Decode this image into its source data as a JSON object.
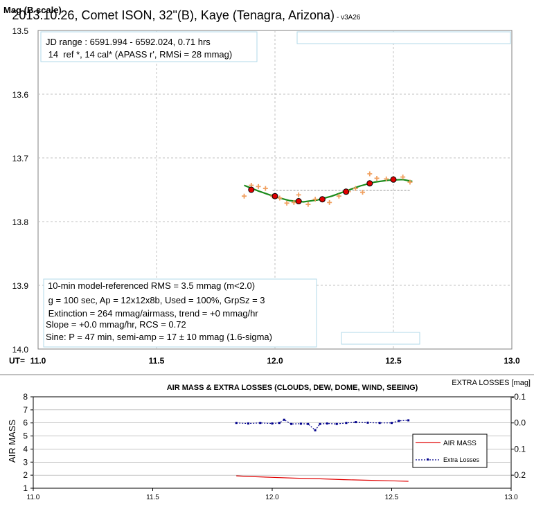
{
  "top_chart": {
    "title": "2013.10.26, Comet ISON, 32\"(B), Kaye (Tenagra, Arizona)",
    "version": "- v3A26",
    "ylabel": "Mag (B scale)",
    "x_prefix": "UT=",
    "info_top": [
      "JD range : 6591.994 - 6592.024, 0.71 hrs",
      " 14  ref *, 14 cal* (APASS r', RMSi = 28 mmag)"
    ],
    "info_bottom": [
      "10-min model-referenced RMS = 3.5 mmag (m<2.0)",
      " g = 100 sec, Ap = 12x12x8b, Used = 100%, GrpSz = 3",
      " Extinction = 264 mmag/airmass, trend = +0 mmag/hr",
      "Slope = +0.0 mmag/hr, RCS = 0.72",
      "Sine: P = 47 min, semi-amp = 17 ± 10 mmag (1.6-sigma)"
    ]
  },
  "bottom_chart": {
    "title": "AIR MASS & EXTRA LOSSES (CLOUDS, DEW, DOME, WIND, SEEING)",
    "y2_title": "EXTRA LOSSES [mag]",
    "ylabel": "AIR MASS",
    "legend": [
      "AIR MASS",
      "Extra Losses"
    ]
  },
  "colors": {
    "raw_points": "#f0a060",
    "averages_fill": "#e00000",
    "model_line": "#1a8a1a",
    "air_mass": "#e00000",
    "extra_losses": "#00008b",
    "grid": "#c0c0c0",
    "box_border": "#b0d8e8"
  },
  "chart_data": [
    {
      "type": "scatter",
      "title": "2013.10.26, Comet ISON, 32\"(B), Kaye (Tenagra, Arizona)",
      "xlabel": "UT=",
      "ylabel": "Mag (B scale)",
      "xlim": [
        11.0,
        13.0
      ],
      "ylim": [
        14.0,
        13.5
      ],
      "y_inverted": true,
      "x_ticks": [
        "11.0",
        "11.5",
        "12.0",
        "12.5",
        "13.0"
      ],
      "y_ticks": [
        "13.5",
        "13.6",
        "13.7",
        "13.8",
        "13.9",
        "14.0"
      ],
      "grid": true,
      "series": [
        {
          "marker": "plus",
          "x": [
            11.87,
            11.9,
            11.93,
            11.96,
            11.99,
            12.02,
            12.05,
            12.08,
            12.1,
            12.14,
            12.17,
            12.2,
            12.23,
            12.27,
            12.31,
            12.34,
            12.37,
            12.4,
            12.43,
            12.47,
            12.5,
            12.54,
            12.57
          ],
          "y": [
            13.76,
            13.743,
            13.745,
            13.748,
            13.76,
            13.763,
            13.771,
            13.77,
            13.758,
            13.773,
            13.765,
            13.765,
            13.77,
            13.76,
            13.753,
            13.748,
            13.754,
            13.725,
            13.732,
            13.733,
            13.732,
            13.73,
            13.738
          ]
        },
        {
          "marker": "circle",
          "x": [
            11.9,
            12.0,
            12.1,
            12.2,
            12.3,
            12.4,
            12.5
          ],
          "y": [
            13.75,
            13.76,
            13.768,
            13.765,
            13.753,
            13.74,
            13.734
          ]
        },
        {
          "line": "model",
          "x": [
            11.87,
            11.93,
            12.0,
            12.06,
            12.12,
            12.18,
            12.24,
            12.3,
            12.36,
            12.42,
            12.48,
            12.54,
            12.58
          ],
          "y": [
            13.743,
            13.752,
            13.761,
            13.767,
            13.769,
            13.766,
            13.76,
            13.752,
            13.744,
            13.738,
            13.735,
            13.734,
            13.737
          ]
        },
        {
          "line": "trend",
          "x": [
            11.99,
            12.57
          ],
          "y": [
            13.751,
            13.751
          ]
        }
      ]
    },
    {
      "type": "line",
      "title": "AIR MASS & EXTRA LOSSES (CLOUDS, DEW, DOME, WIND, SEEING)",
      "xlabel": "",
      "ylabel": "AIR MASS",
      "xlim": [
        11.0,
        13.0
      ],
      "ylim": [
        1,
        8
      ],
      "y2lim": [
        -0.1,
        0.25
      ],
      "y2_inverted": true,
      "x_ticks": [
        "11.0",
        "11.5",
        "12.0",
        "12.5",
        "13.0"
      ],
      "y_ticks": [
        "1",
        "2",
        "3",
        "4",
        "5",
        "6",
        "7",
        "8"
      ],
      "y2_ticks": [
        "-0.1",
        "0.0",
        "0.1",
        "0.2"
      ],
      "legend_position": "right",
      "series": [
        {
          "name": "AIR MASS",
          "axis": "left",
          "x": [
            11.85,
            11.9,
            12.0,
            12.1,
            12.2,
            12.3,
            12.4,
            12.5,
            12.57
          ],
          "y": [
            1.95,
            1.9,
            1.83,
            1.77,
            1.72,
            1.66,
            1.61,
            1.57,
            1.53
          ]
        },
        {
          "name": "Extra Losses",
          "axis": "right",
          "x": [
            11.85,
            11.9,
            11.95,
            12.0,
            12.03,
            12.05,
            12.08,
            12.12,
            12.15,
            12.18,
            12.2,
            12.23,
            12.27,
            12.31,
            12.35,
            12.4,
            12.45,
            12.5,
            12.53,
            12.57
          ],
          "y": [
            0.0,
            0.002,
            0.0,
            0.002,
            0.0,
            -0.012,
            0.004,
            0.003,
            0.004,
            0.028,
            0.004,
            0.002,
            0.004,
            0.0,
            -0.003,
            -0.001,
            0.0,
            0.0,
            -0.008,
            -0.01
          ]
        }
      ]
    }
  ]
}
